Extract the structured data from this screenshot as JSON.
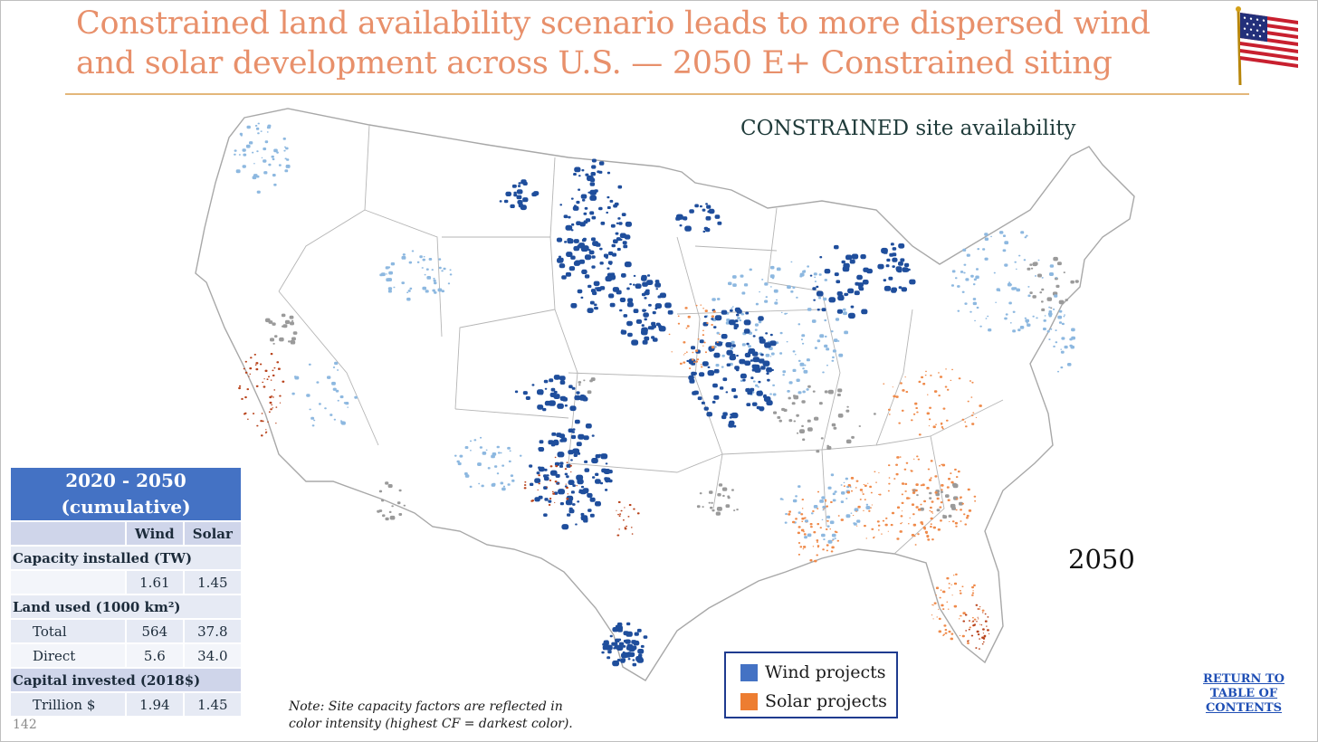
{
  "slide": {
    "title_line1": "Constrained land availability scenario leads to more dispersed wind",
    "title_line2": "and solar development across U.S. — 2050 E+ Constrained siting",
    "page_number": "142",
    "flag_icon": "us-flag-icon"
  },
  "map": {
    "label": "CONSTRAINED site availability",
    "year": "2050",
    "colors": {
      "wind": "#1f4e9c",
      "wind_light": "#6fa8dc",
      "solar": "#ef7a3a",
      "solar_dark": "#b83a12",
      "urban": "#8c8c8c",
      "border": "#9a9a9a"
    }
  },
  "summary_table": {
    "header_line1": "2020 - 2050",
    "header_line2": "(cumulative)",
    "col_wind": "Wind",
    "col_solar": "Solar",
    "capacity_label": "Capacity installed (TW)",
    "capacity_wind": "1.61",
    "capacity_solar": "1.45",
    "land_label": "Land used (1000 km²)",
    "total_label": "Total",
    "total_wind": "564",
    "total_solar": "37.8",
    "direct_label": "Direct",
    "direct_wind": "5.6",
    "direct_solar": "34.0",
    "capital_label": "Capital invested (2018$)",
    "trillion_label": "Trillion $",
    "trillion_wind": "1.94",
    "trillion_solar": "1.45"
  },
  "legend": {
    "wind_label": "Wind projects",
    "solar_label": "Solar projects",
    "wind_color": "#4472c4",
    "solar_color": "#ed7d31"
  },
  "note": {
    "line1": "Note: Site capacity factors are reflected in",
    "line2": "color intensity (highest CF = darkest color)."
  },
  "toc_link": {
    "line1": "RETURN TO",
    "line2": "TABLE OF",
    "line3": "CONTENTS"
  }
}
